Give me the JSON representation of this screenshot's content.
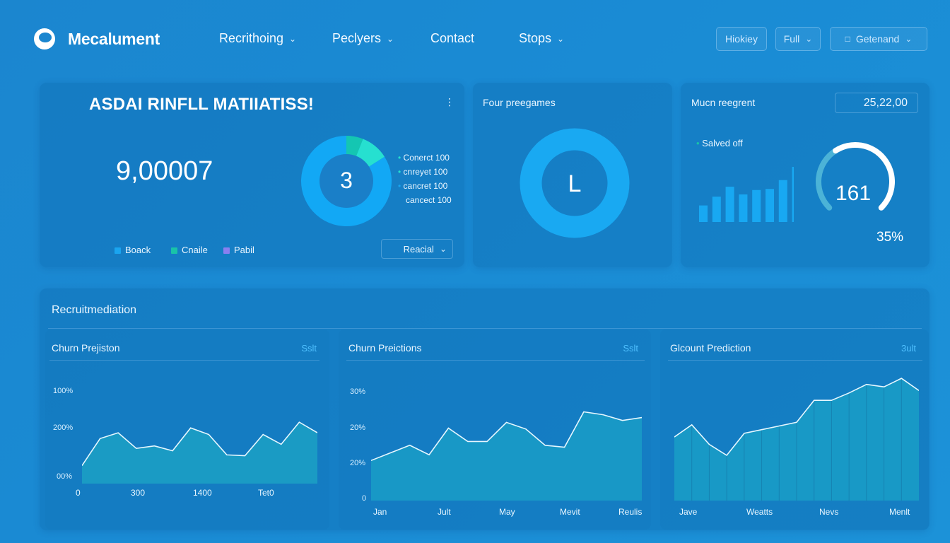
{
  "brand": {
    "name": "Mecalument"
  },
  "nav": [
    {
      "label": "Recrithoing",
      "chevron": true
    },
    {
      "label": "Peclyers",
      "chevron": true
    },
    {
      "label": "Contact",
      "chevron": false
    },
    {
      "label": "Stops",
      "chevron": true
    }
  ],
  "top_right": {
    "btn1": "Hiokiey",
    "btn2": "Full",
    "btn3": "Getenand"
  },
  "card1": {
    "title": "ASDAI RINFLL MATIIATISS!",
    "big_number": "9,00007",
    "donut_center": "3",
    "donut_legend": [
      "Conerct 100",
      "cnreyet 100",
      "cancret 100",
      "cancect 100"
    ],
    "legend": [
      "Boack",
      "Cnaile",
      "Pabil"
    ],
    "select_label": "Reacial",
    "donut_segments": [
      0.84,
      0.06,
      0.1
    ],
    "colors": {
      "seg_main": "#12a8f5",
      "seg_teal": "#14c6b2",
      "seg_cyan": "#26e0d0",
      "legend_blue": "#1aa5f0",
      "legend_teal": "#19c3a8",
      "legend_purple": "#8a7ff0"
    }
  },
  "card2": {
    "title": "Four preegames",
    "center": "L",
    "color": "#19a9f2"
  },
  "card3": {
    "title": "Mucn reegrent",
    "value_box": "25,22,00",
    "legend": "Salved off",
    "gauge_value": "161",
    "percent": "35%",
    "bar_values": [
      0.3,
      0.46,
      0.64,
      0.5,
      0.58,
      0.6,
      0.76,
      1.0
    ],
    "gauge_fraction": 0.62
  },
  "section": {
    "title": "Recruitmediation",
    "charts": [
      {
        "title": "Churn Prejiston",
        "action": "Sslt",
        "ylabels": [
          "100%",
          "200%",
          "00%"
        ],
        "xlabels": [
          "0",
          "300",
          "1400",
          "Tet0"
        ],
        "values": [
          0.22,
          0.55,
          0.62,
          0.43,
          0.46,
          0.4,
          0.68,
          0.6,
          0.35,
          0.34,
          0.6,
          0.48,
          0.75,
          0.62
        ]
      },
      {
        "title": "Churn Preictions",
        "action": "Sslt",
        "ylabels": [
          "30%",
          "20%",
          "20%",
          "0"
        ],
        "xlabels": [
          "Jan",
          "Jult",
          "May",
          "Mevit",
          "Reulis"
        ],
        "values": [
          0.42,
          0.5,
          0.58,
          0.48,
          0.76,
          0.62,
          0.62,
          0.82,
          0.75,
          0.58,
          0.56,
          0.93,
          0.9,
          0.84,
          0.87
        ]
      },
      {
        "title": "Glcount Prediction",
        "action": "3ult",
        "ylabels": [],
        "xlabels": [
          "Jave",
          "Weatts",
          "Nevs",
          "Menlt"
        ],
        "values": [
          0.52,
          0.62,
          0.46,
          0.37,
          0.55,
          0.58,
          0.61,
          0.64,
          0.82,
          0.82,
          0.88,
          0.95,
          0.93,
          1.0,
          0.9
        ]
      }
    ]
  }
}
